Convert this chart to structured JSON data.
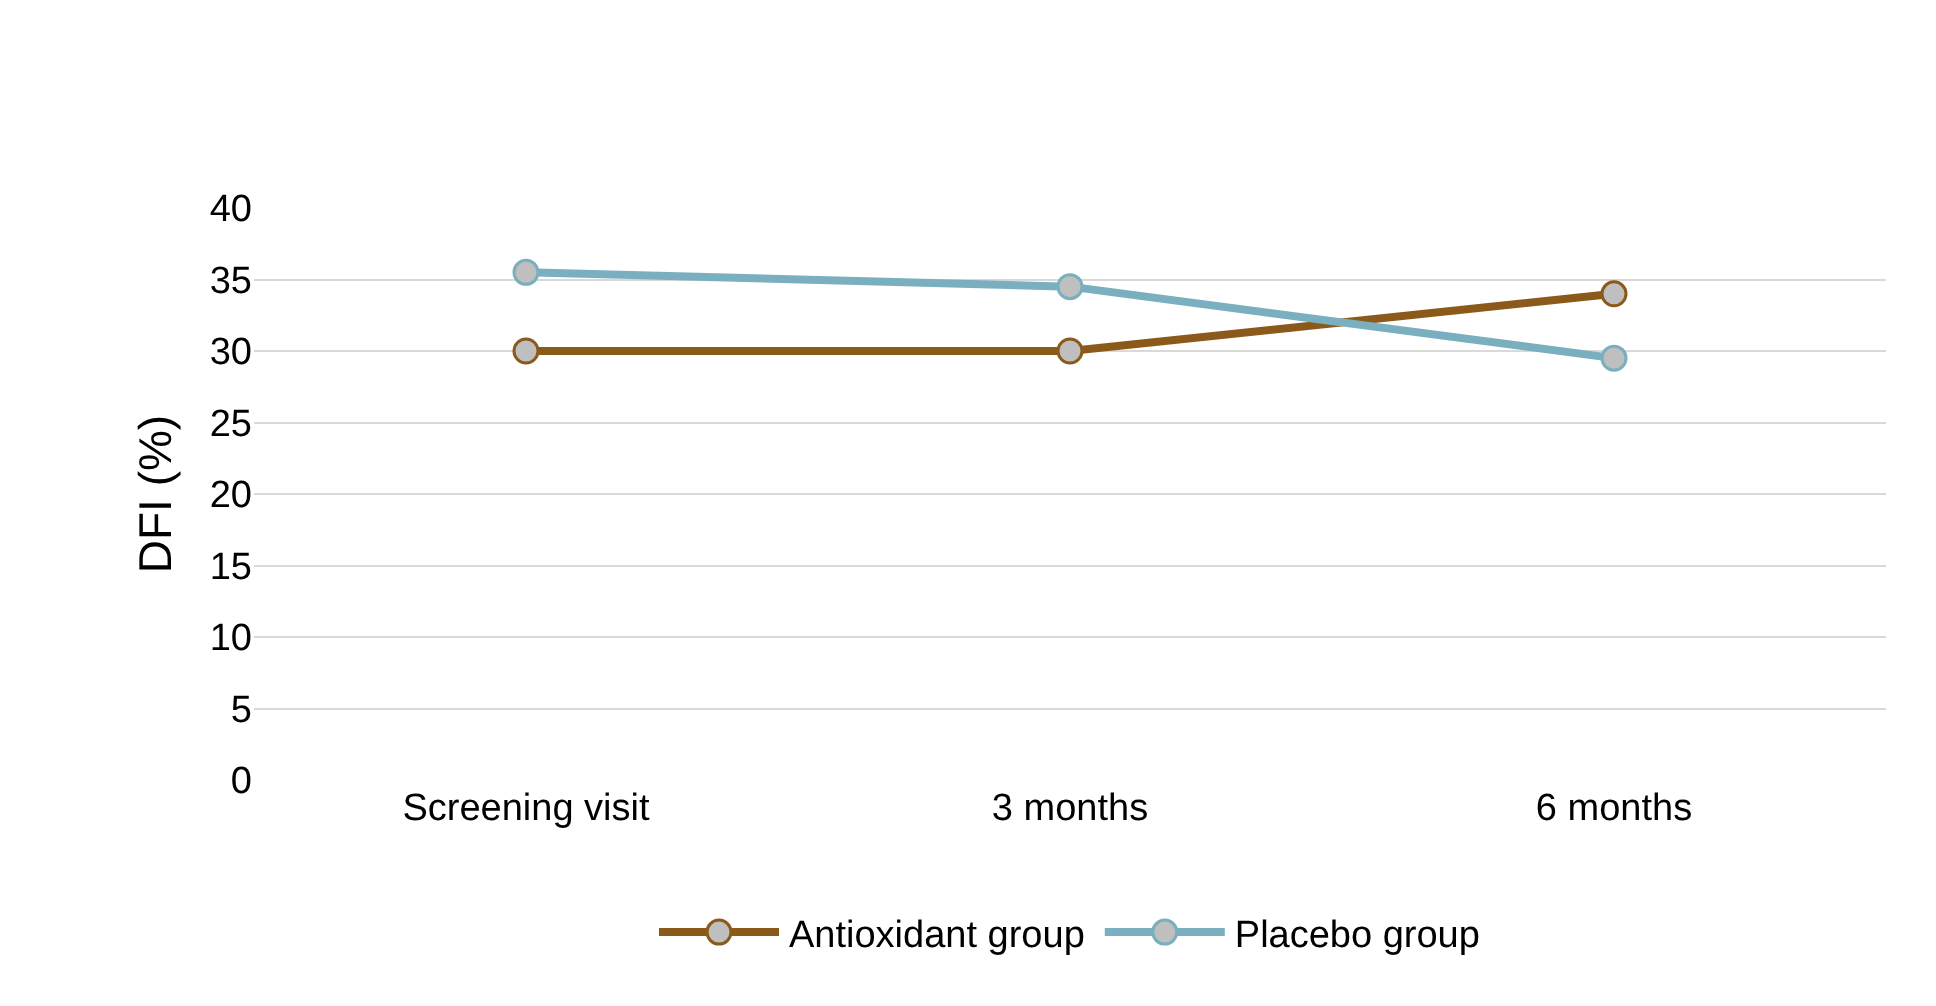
{
  "chart_data": {
    "type": "line",
    "ylabel": "DFI (%)",
    "categories": [
      "Screening visit",
      "3 months",
      "6 months"
    ],
    "series": [
      {
        "name": "Antioxidant group",
        "color": "#8b5a1b",
        "values": [
          30,
          30,
          34
        ]
      },
      {
        "name": "Placebo group",
        "color": "#7aafc0",
        "values": [
          35.5,
          34.5,
          29.5
        ]
      }
    ],
    "ylim": [
      0,
      40
    ],
    "yticks": [
      0,
      5,
      10,
      15,
      20,
      25,
      30,
      35,
      40
    ],
    "grid": "y",
    "legend": "bottom",
    "marker": "circle",
    "line_style": "solid"
  }
}
